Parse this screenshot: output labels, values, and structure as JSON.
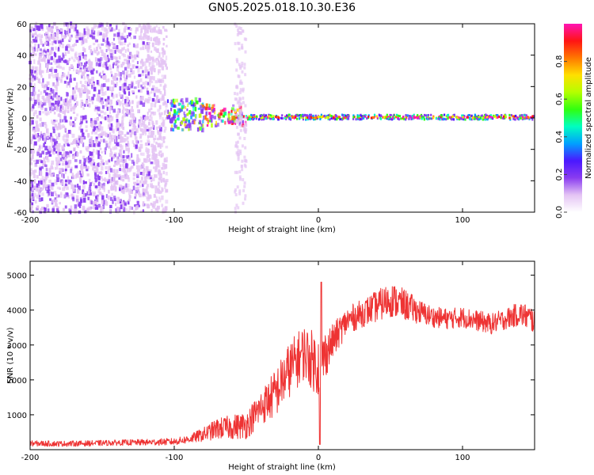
{
  "title": "GN05.2025.018.10.30.E36",
  "colors": {
    "snr_line": "#ee3333",
    "colormap": [
      "#ffffff",
      "#e4c4f4",
      "#8a3cf0",
      "#4a18ff",
      "#00a0ff",
      "#00ffc0",
      "#30ff10",
      "#b4ff00",
      "#ffe000",
      "#ff7800",
      "#ff1414",
      "#ff14b4"
    ]
  },
  "chart_data": [
    {
      "type": "heatmap",
      "title": "GN05.2025.018.10.30.E36",
      "xlabel": "Height of straight line (km)",
      "ylabel": "Frequency (Hz)",
      "xlim": [
        -200,
        150
      ],
      "ylim": [
        -60,
        60
      ],
      "xticks": [
        -200,
        -100,
        0,
        100
      ],
      "yticks": [
        -60,
        -40,
        -20,
        0,
        20,
        40,
        60
      ],
      "colorbar": {
        "label": "Normalized spectral amplitude",
        "range": [
          0,
          1
        ],
        "ticks": [
          "0.0",
          "0.2",
          "0.4",
          "0.6",
          "0.8"
        ]
      },
      "regions": [
        {
          "x_range": [
            -200,
            -105
          ],
          "freq_range": [
            -60,
            60
          ],
          "amplitude": 0.08,
          "description": "scattered noise"
        },
        {
          "x_range": [
            -105,
            -80
          ],
          "freq_range": [
            -8,
            12
          ],
          "amplitude": 0.3
        },
        {
          "x_range": [
            -80,
            -50
          ],
          "freq_range": [
            -5,
            8
          ],
          "amplitude": 0.45
        },
        {
          "x_range": [
            -50,
            150
          ],
          "freq_range": [
            -1,
            2
          ],
          "amplitude": 0.9,
          "description": "narrow line near 0 Hz"
        }
      ]
    },
    {
      "type": "line",
      "xlabel": "Height of straight line (km)",
      "ylabel": "SNR (10 * v/v)",
      "xlim": [
        -200,
        150
      ],
      "ylim": [
        0,
        5400
      ],
      "xticks": [
        -200,
        -100,
        0,
        100
      ],
      "yticks": [
        1000,
        2000,
        3000,
        4000,
        5000
      ],
      "x": [
        -200,
        -180,
        -160,
        -140,
        -120,
        -100,
        -90,
        -80,
        -70,
        -60,
        -50,
        -40,
        -30,
        -20,
        -10,
        0,
        10,
        20,
        30,
        40,
        50,
        60,
        70,
        80,
        90,
        100,
        110,
        120,
        130,
        140,
        150
      ],
      "values": [
        180,
        170,
        180,
        200,
        210,
        230,
        300,
        430,
        600,
        650,
        700,
        1200,
        1600,
        2300,
        2800,
        2400,
        3100,
        3700,
        3900,
        4100,
        4300,
        4150,
        3950,
        3800,
        3750,
        3800,
        3700,
        3600,
        3750,
        3900,
        3700
      ],
      "spread": [
        80,
        80,
        80,
        80,
        90,
        100,
        120,
        200,
        300,
        350,
        400,
        500,
        700,
        800,
        800,
        900,
        500,
        400,
        400,
        450,
        500,
        450,
        350,
        300,
        300,
        300,
        300,
        300,
        300,
        350,
        400
      ]
    }
  ]
}
